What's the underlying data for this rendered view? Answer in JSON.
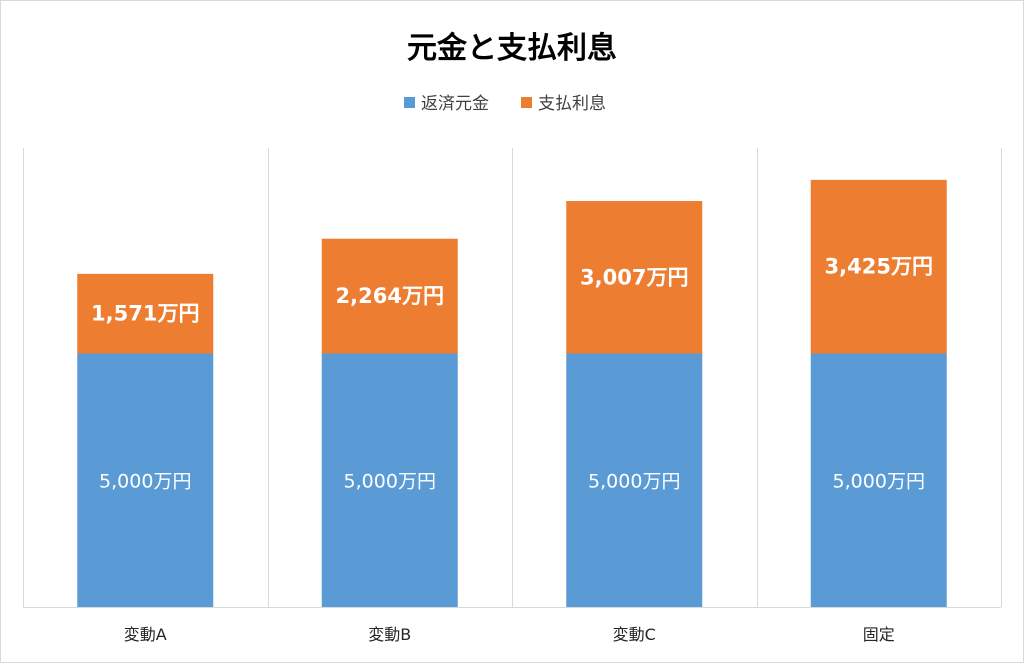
{
  "chart_data": {
    "type": "bar",
    "stacked": true,
    "title": "元金と支払利息",
    "categories": [
      "変動A",
      "変動B",
      "変動C",
      "固定"
    ],
    "series": [
      {
        "name": "返済元金",
        "color": "#5b9bd5",
        "values": [
          5000,
          5000,
          5000,
          5000
        ],
        "labels": [
          "5,000万円",
          "5,000万円",
          "5,000万円",
          "5,000万円"
        ]
      },
      {
        "name": "支払利息",
        "color": "#ed7d31",
        "values": [
          1571,
          2264,
          3007,
          3425
        ],
        "labels": [
          "1,571万円",
          "2,264万円",
          "3,007万円",
          "3,425万円"
        ]
      }
    ],
    "unit": "万円",
    "ylim": [
      0,
      9000
    ],
    "legend_position": "top",
    "gridlines": "vertical category separators",
    "y_axis_visible": false
  }
}
